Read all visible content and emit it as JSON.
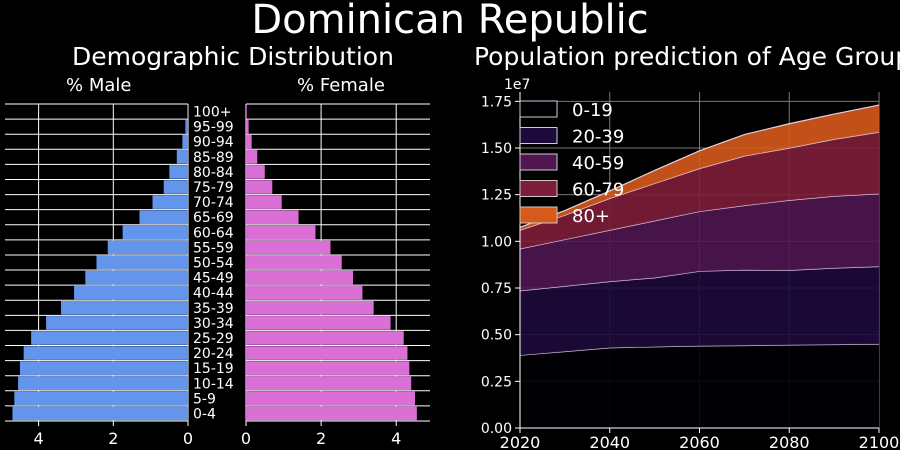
{
  "figure": {
    "title": "Dominican Republic",
    "left_title": "Demographic Distribution",
    "right_title": "Population prediction of Age Groups"
  },
  "chart_data": [
    {
      "type": "bar",
      "orientation": "horizontal",
      "name": "pyramid-male",
      "title": "% Male",
      "categories": [
        "0-4",
        "5-9",
        "10-14",
        "15-19",
        "20-24",
        "25-29",
        "30-34",
        "35-39",
        "40-44",
        "45-49",
        "50-54",
        "55-59",
        "60-64",
        "65-69",
        "70-74",
        "75-79",
        "80-84",
        "85-89",
        "90-94",
        "95-99",
        "100+"
      ],
      "values": [
        4.7,
        4.65,
        4.55,
        4.5,
        4.4,
        4.2,
        3.8,
        3.4,
        3.05,
        2.75,
        2.45,
        2.15,
        1.75,
        1.3,
        0.95,
        0.65,
        0.5,
        0.3,
        0.15,
        0.07,
        0.02
      ],
      "xlim": [
        0,
        4.9
      ],
      "xticks": [
        4,
        2,
        0
      ],
      "direction": "reversed",
      "color": "#6495ED",
      "grid": true
    },
    {
      "type": "bar",
      "orientation": "horizontal",
      "name": "pyramid-female",
      "title": "% Female",
      "categories": [
        "0-4",
        "5-9",
        "10-14",
        "15-19",
        "20-24",
        "25-29",
        "30-34",
        "35-39",
        "40-44",
        "45-49",
        "50-54",
        "55-59",
        "60-64",
        "65-69",
        "70-74",
        "75-79",
        "80-84",
        "85-89",
        "90-94",
        "95-99",
        "100+"
      ],
      "values": [
        4.55,
        4.5,
        4.4,
        4.35,
        4.3,
        4.2,
        3.85,
        3.4,
        3.1,
        2.85,
        2.55,
        2.25,
        1.85,
        1.4,
        0.95,
        0.7,
        0.5,
        0.3,
        0.15,
        0.07,
        0.02
      ],
      "xlim": [
        0,
        4.9
      ],
      "xticks": [
        0,
        2,
        4
      ],
      "color": "#DA70D6",
      "grid": true
    },
    {
      "type": "area",
      "stacked": true,
      "x": [
        2020,
        2030,
        2040,
        2050,
        2060,
        2070,
        2080,
        2090,
        2100
      ],
      "xticks": [
        2020,
        2040,
        2060,
        2080,
        2100
      ],
      "xlim": [
        2020,
        2100
      ],
      "ylim": [
        0,
        18000000
      ],
      "yticks": [
        0,
        2500000,
        5000000,
        7500000,
        10000000,
        12500000,
        15000000,
        17500000
      ],
      "ytick_labels": [
        "0.00",
        "0.25",
        "0.50",
        "0.75",
        "1.00",
        "1.25",
        "1.50",
        "1.75"
      ],
      "y_offset_label": "1e7",
      "legend": "top-left",
      "grid": true,
      "series": [
        {
          "name": "0-19",
          "color": "#000004",
          "values": [
            3900000,
            4100000,
            4300000,
            4350000,
            4400000,
            4420000,
            4450000,
            4470000,
            4500000
          ]
        },
        {
          "name": "20-39",
          "color": "#1d0a3b",
          "values": [
            3450000,
            3500000,
            3550000,
            3700000,
            4000000,
            4050000,
            4000000,
            4100000,
            4150000
          ]
        },
        {
          "name": "40-59",
          "color": "#4f1652",
          "values": [
            2250000,
            2500000,
            2750000,
            3050000,
            3200000,
            3450000,
            3750000,
            3850000,
            3900000
          ]
        },
        {
          "name": "60-79",
          "color": "#7d1d3a",
          "values": [
            1000000,
            1300000,
            1700000,
            2000000,
            2300000,
            2650000,
            2800000,
            3050000,
            3300000
          ]
        },
        {
          "name": "80+",
          "color": "#d65a1c",
          "values": [
            150000,
            250000,
            400000,
            700000,
            950000,
            1150000,
            1300000,
            1350000,
            1450000
          ]
        }
      ]
    }
  ]
}
